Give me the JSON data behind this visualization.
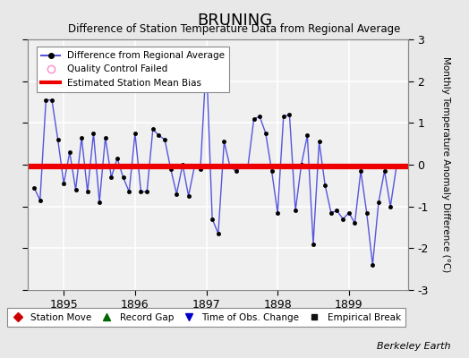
{
  "title": "BRUNING",
  "subtitle": "Difference of Station Temperature Data from Regional Average",
  "ylabel_right": "Monthly Temperature Anomaly Difference (°C)",
  "credit": "Berkeley Earth",
  "ylim": [
    -3,
    3
  ],
  "yticks": [
    -3,
    -2,
    -1,
    0,
    1,
    2,
    3
  ],
  "xlim": [
    1894.5,
    1899.83
  ],
  "xticks": [
    1895,
    1896,
    1897,
    1898,
    1899
  ],
  "bias_value": -0.05,
  "line_color": "#5555dd",
  "marker_color": "#000000",
  "bias_color": "#ee0000",
  "background_color": "#e8e8e8",
  "plot_bg_color": "#f0f0f0",
  "grid_color": "#ffffff",
  "x_values": [
    1894.583,
    1894.667,
    1894.75,
    1894.833,
    1894.917,
    1895.0,
    1895.083,
    1895.167,
    1895.25,
    1895.333,
    1895.417,
    1895.5,
    1895.583,
    1895.667,
    1895.75,
    1895.833,
    1895.917,
    1896.0,
    1896.083,
    1896.167,
    1896.25,
    1896.333,
    1896.417,
    1896.5,
    1896.583,
    1896.667,
    1896.75,
    1896.833,
    1896.917,
    1897.0,
    1897.083,
    1897.167,
    1897.25,
    1897.333,
    1897.417,
    1897.5,
    1897.583,
    1897.667,
    1897.75,
    1897.833,
    1897.917,
    1898.0,
    1898.083,
    1898.167,
    1898.25,
    1898.333,
    1898.417,
    1898.5,
    1898.583,
    1898.667,
    1898.75,
    1898.833,
    1898.917,
    1899.0,
    1899.083,
    1899.167,
    1899.25,
    1899.333,
    1899.417,
    1899.5,
    1899.583,
    1899.667
  ],
  "y_values": [
    -0.55,
    -0.85,
    1.55,
    1.55,
    0.6,
    -0.45,
    0.3,
    -0.6,
    0.65,
    -0.65,
    0.75,
    -0.9,
    0.65,
    -0.3,
    0.15,
    -0.3,
    -0.65,
    0.75,
    -0.65,
    -0.65,
    0.85,
    0.7,
    0.6,
    -0.1,
    -0.7,
    0.0,
    -0.75,
    -0.05,
    -0.1,
    2.5,
    -1.3,
    -1.65,
    0.55,
    -0.05,
    -0.15,
    -0.05,
    -0.05,
    1.1,
    1.15,
    0.75,
    -0.15,
    -1.15,
    1.15,
    1.2,
    -1.1,
    0.0,
    0.7,
    -1.9,
    0.55,
    -0.5,
    -1.15,
    -1.1,
    -1.3,
    -1.15,
    -1.4,
    -0.15,
    -1.15,
    -2.4,
    -0.9,
    -0.15,
    -1.0,
    -0.05
  ]
}
